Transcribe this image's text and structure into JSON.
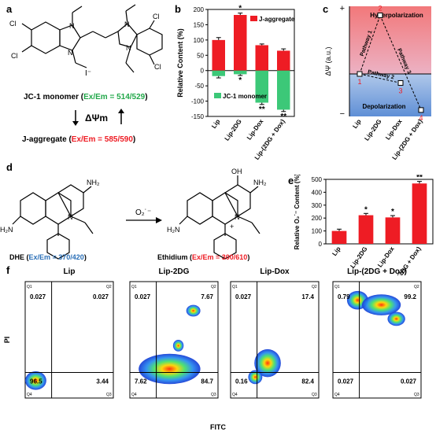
{
  "panels": {
    "a": {
      "label": "a",
      "iodide": "I⁻",
      "monomer_name": "JC-1 monomer (",
      "monomer_exem": "Ex/Em = 514/529",
      "close": ")",
      "delta_label": "ΔΨm",
      "jagg_name": "J-aggregate (",
      "jagg_exem": "Ex/Em = 585/590",
      "atoms": {
        "cl": "Cl",
        "n": "N",
        "nplus": "N"
      }
    },
    "b": {
      "label": "b"
    },
    "c": {
      "label": "c"
    },
    "d": {
      "label": "d",
      "dhe_name": "DHE (",
      "dhe_exem": "Ex/Em = 370/420",
      "eth_name": "Ethidium (",
      "eth_exem": "Ex/Em = 300/610",
      "close": ")",
      "reagent": "O₂˙⁻",
      "atoms": {
        "nh2": "NH₂",
        "h2n": "H₂N",
        "n": "N",
        "oh": "OH",
        "plus": "+"
      }
    },
    "e": {
      "label": "e"
    },
    "f": {
      "label": "f",
      "y_axis": "PI",
      "x_axis": "FITC",
      "titles": [
        "Lip",
        "Lip-2DG",
        "Lip-Dox",
        "Lip-(2DG + Dox)"
      ],
      "quadrant_labels": [
        "Q1",
        "Q2",
        "Q3",
        "Q4"
      ],
      "quadrant_values": [
        {
          "q1": "0.027",
          "q2": "0.027",
          "q3": "3.44",
          "q4": "96.5"
        },
        {
          "q1": "0.027",
          "q2": "7.67",
          "q3": "84.7",
          "q4": "7.62"
        },
        {
          "q1": "0.027",
          "q2": "17.4",
          "q3": "82.4",
          "q4": "0.16"
        },
        {
          "q1": "0.79",
          "q2": "99.2",
          "q3": "0.027",
          "q4": "0.027"
        }
      ]
    }
  },
  "chart_data": [
    {
      "type": "bar",
      "panel": "b",
      "categories": [
        "Lip",
        "Lip-2DG",
        "Lip-Dox",
        "Lip-(2DG + Dox)"
      ],
      "ylabel": "Relative Content (%)",
      "ylim": [
        -150,
        200
      ],
      "yticks": [
        -150,
        -100,
        -50,
        0,
        50,
        100,
        150,
        200
      ],
      "series": [
        {
          "name": "J-aggregate",
          "color": "#ee1c24",
          "values": [
            100,
            182,
            83,
            65
          ],
          "errors": [
            8,
            6,
            4,
            6
          ],
          "significance": [
            "",
            "*",
            "",
            ""
          ]
        },
        {
          "name": "JC-1 monomer",
          "color": "#3cc878",
          "values": [
            -18,
            -12,
            -105,
            -128
          ],
          "errors": [
            6,
            4,
            6,
            6
          ],
          "significance": [
            "",
            "*",
            "**",
            "**"
          ]
        }
      ],
      "legend_position": "inside"
    },
    {
      "type": "line",
      "panel": "c",
      "ylabel": "ΔΨ (a.u.)",
      "y_end_labels": [
        "+",
        "−"
      ],
      "categories": [
        "Lip",
        "Lip-2DG",
        "Lip-Dox",
        "Lip-(2DG + Dox)"
      ],
      "region_labels": [
        "Hyperpolarization",
        "Depolarization"
      ],
      "points": [
        {
          "id": "1",
          "category": "Lip",
          "value": 0,
          "color": "#ee1c24"
        },
        {
          "id": "2",
          "category": "Lip-2DG",
          "value": 1.3,
          "color": "#ee1c24"
        },
        {
          "id": "3",
          "category": "Lip-Dox",
          "value": -0.2,
          "color": "#ee1c24"
        },
        {
          "id": "4",
          "category": "Lip-(2DG + Dox)",
          "value": -0.8,
          "color": "#ee1c24"
        }
      ],
      "paths": [
        {
          "label": "Pathway 1",
          "from": "1",
          "to": "2"
        },
        {
          "label": "Pathway 2",
          "from": "1",
          "to": "3"
        },
        {
          "label": "Pathway 3",
          "from": "2",
          "to": "4"
        }
      ]
    },
    {
      "type": "bar",
      "panel": "e",
      "categories": [
        "Lip",
        "Lip-2DG",
        "Lip-Dox",
        "Lip-(2DG + Dox)"
      ],
      "ylabel": "Relative O₂˙⁻ Content (%)",
      "ylim": [
        0,
        500
      ],
      "yticks": [
        0,
        100,
        200,
        300,
        400,
        500
      ],
      "series": [
        {
          "name": "",
          "color": "#ee1c24",
          "values": [
            100,
            222,
            205,
            468
          ],
          "errors": [
            14,
            14,
            14,
            16
          ],
          "significance": [
            "",
            "*",
            "*",
            "**"
          ]
        }
      ]
    }
  ]
}
